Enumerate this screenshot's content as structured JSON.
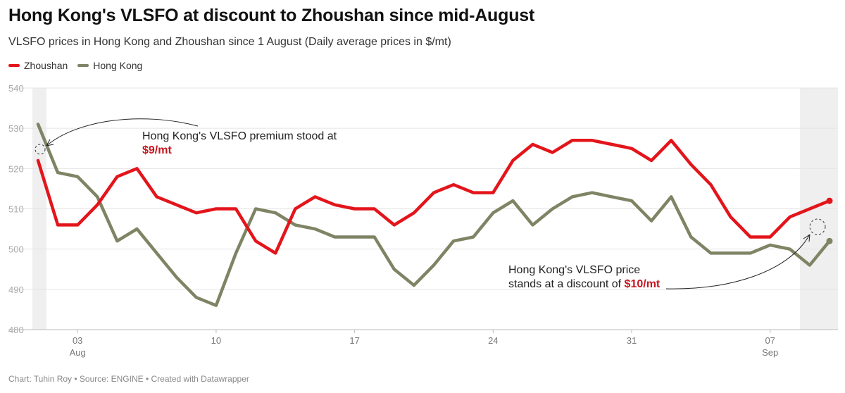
{
  "header": {
    "title": "Hong Kong's VLSFO at discount to Zhoushan since mid-August",
    "subtitle": "VLSFO prices in Hong Kong and Zhoushan since 1 August (Daily average prices in $/mt)"
  },
  "legend": [
    {
      "name": "Zhoushan",
      "color": "#e3151b"
    },
    {
      "name": "Hong Kong",
      "color": "#7e8464"
    }
  ],
  "footer": "Chart: Tuhin Roy • Source: ENGINE • Created with Datawrapper",
  "annotations": {
    "first": {
      "line1": "Hong Kong's VLSFO premium stood at",
      "highlight": "$9/mt"
    },
    "last": {
      "line1": "Hong Kong's VLSFO price",
      "line2": "stands at a discount of ",
      "highlight": "$10/mt"
    }
  },
  "chart_data": {
    "type": "line",
    "title": "Hong Kong's VLSFO at discount to Zhoushan since mid-August",
    "subtitle": "VLSFO prices in Hong Kong and Zhoushan since 1 August (Daily average prices in $/mt)",
    "x": [
      "2024-08-01",
      "2024-08-02",
      "2024-08-03",
      "2024-08-04",
      "2024-08-05",
      "2024-08-06",
      "2024-08-07",
      "2024-08-08",
      "2024-08-09",
      "2024-08-10",
      "2024-08-11",
      "2024-08-12",
      "2024-08-13",
      "2024-08-14",
      "2024-08-15",
      "2024-08-16",
      "2024-08-17",
      "2024-08-18",
      "2024-08-19",
      "2024-08-20",
      "2024-08-21",
      "2024-08-22",
      "2024-08-23",
      "2024-08-24",
      "2024-08-25",
      "2024-08-26",
      "2024-08-27",
      "2024-08-28",
      "2024-08-29",
      "2024-08-30",
      "2024-08-31",
      "2024-09-01",
      "2024-09-02",
      "2024-09-03",
      "2024-09-04",
      "2024-09-05",
      "2024-09-06",
      "2024-09-07",
      "2024-09-08",
      "2024-09-09",
      "2024-09-10"
    ],
    "series": [
      {
        "name": "Zhoushan",
        "color": "#e3151b",
        "values": [
          522,
          506,
          506,
          511,
          518,
          520,
          513,
          511,
          509,
          510,
          510,
          502,
          499,
          510,
          513,
          511,
          510,
          510,
          506,
          509,
          514,
          516,
          514,
          514,
          522,
          526,
          524,
          527,
          527,
          526,
          525,
          522,
          527,
          521,
          516,
          508,
          503,
          503,
          508,
          510,
          512
        ]
      },
      {
        "name": "Hong Kong",
        "color": "#7e8464",
        "values": [
          531,
          519,
          518,
          513,
          502,
          505,
          499,
          493,
          488,
          486,
          499,
          510,
          509,
          506,
          505,
          503,
          503,
          503,
          495,
          491,
          496,
          502,
          503,
          509,
          512,
          506,
          510,
          513,
          514,
          513,
          512,
          507,
          513,
          503,
          499,
          499,
          499,
          501,
          500,
          496,
          502
        ]
      }
    ],
    "x_ticks": [
      {
        "date": "2024-08-03",
        "label": "03",
        "sublabel": "Aug"
      },
      {
        "date": "2024-08-10",
        "label": "10",
        "sublabel": ""
      },
      {
        "date": "2024-08-17",
        "label": "17",
        "sublabel": ""
      },
      {
        "date": "2024-08-24",
        "label": "24",
        "sublabel": ""
      },
      {
        "date": "2024-08-31",
        "label": "31",
        "sublabel": ""
      },
      {
        "date": "2024-09-07",
        "label": "07",
        "sublabel": "Sep"
      }
    ],
    "ylim": [
      480,
      540
    ],
    "y_ticks": [
      480,
      490,
      500,
      510,
      520,
      530,
      540
    ],
    "xlabel": "",
    "ylabel": "",
    "grid": true,
    "legend_position": "top-left",
    "highlight_ranges": [
      [
        "2024-08-01",
        "2024-08-01"
      ],
      [
        "2024-09-09",
        "2024-09-10"
      ]
    ]
  }
}
